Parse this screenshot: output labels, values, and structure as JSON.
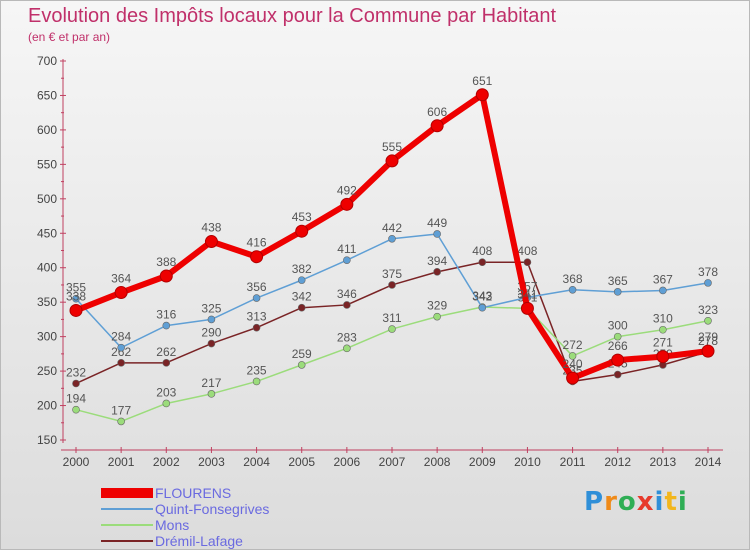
{
  "header": {
    "title": "Evolution des Impôts locaux pour la Commune par Habitant",
    "subtitle": "(en € et par an)"
  },
  "chart_data": {
    "type": "line",
    "title": "Evolution des Impôts locaux pour la Commune par Habitant",
    "subtitle": "(en € et par an)",
    "xlabel": "",
    "ylabel": "",
    "categories": [
      "2000",
      "2001",
      "2002",
      "2003",
      "2004",
      "2005",
      "2006",
      "2007",
      "2008",
      "2009",
      "2010",
      "2011",
      "2012",
      "2013",
      "2014"
    ],
    "ylim": [
      150,
      700
    ],
    "yticks": [
      150,
      200,
      250,
      300,
      350,
      400,
      450,
      500,
      550,
      600,
      650,
      700
    ],
    "grid": false,
    "legend_position": "bottom-left",
    "series": [
      {
        "name": "FLOURENS",
        "color": "#ee0000",
        "values": [
          338,
          364,
          388,
          438,
          416,
          453,
          492,
          555,
          606,
          651,
          341,
          240,
          266,
          271,
          279
        ]
      },
      {
        "name": "Quint-Fonsegrives",
        "color": "#5f9fd5",
        "values": [
          355,
          284,
          316,
          325,
          356,
          382,
          411,
          442,
          449,
          342,
          357,
          368,
          365,
          367,
          378
        ]
      },
      {
        "name": "Mons",
        "color": "#9bdc7b",
        "values": [
          194,
          177,
          203,
          217,
          235,
          259,
          283,
          311,
          329,
          343,
          341,
          272,
          300,
          310,
          323
        ]
      },
      {
        "name": "Drémil-Lafage",
        "color": "#7a2426",
        "values": [
          232,
          262,
          262,
          290,
          313,
          342,
          346,
          375,
          394,
          408,
          408,
          235,
          245,
          259,
          278
        ]
      }
    ]
  },
  "logo": {
    "letters": [
      "P",
      "r",
      "o",
      "x",
      "i",
      "t",
      "i"
    ],
    "colors": [
      "#2f8fd8",
      "#ef8a18",
      "#2fae55",
      "#e73a2c",
      "#2f8fd8",
      "#f2b61d",
      "#2fae55"
    ]
  }
}
